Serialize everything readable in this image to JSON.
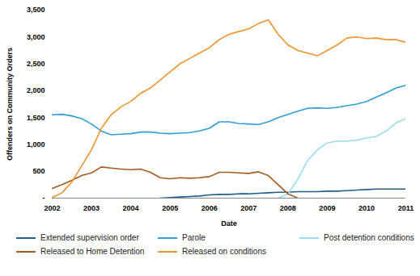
{
  "chart_data": {
    "type": "line",
    "x_label": "Date",
    "y_label": "Offenders on Community Orders",
    "x": [
      2002,
      2002.25,
      2002.5,
      2002.75,
      2003,
      2003.25,
      2003.5,
      2003.75,
      2004,
      2004.25,
      2004.5,
      2004.75,
      2005,
      2005.25,
      2005.5,
      2005.75,
      2006,
      2006.25,
      2006.5,
      2006.75,
      2007,
      2007.25,
      2007.5,
      2007.75,
      2008,
      2008.25,
      2008.5,
      2008.75,
      2009,
      2009.25,
      2009.5,
      2009.75,
      2010,
      2010.25,
      2010.5,
      2010.75,
      2011
    ],
    "xlim": [
      2002,
      2011
    ],
    "xticks": [
      2002,
      2003,
      2004,
      2005,
      2006,
      2007,
      2008,
      2009,
      2010,
      2011
    ],
    "ylim": [
      0,
      3500
    ],
    "yticks": [
      {
        "value": 0,
        "label": "-"
      },
      500,
      {
        "value": 1000,
        "label": "1,000"
      },
      {
        "value": 1500,
        "label": "1,500"
      },
      {
        "value": 2000,
        "label": "2,000"
      },
      {
        "value": 2500,
        "label": "2,500"
      },
      {
        "value": 3000,
        "label": "3,000"
      },
      {
        "value": 3500,
        "label": "3,500"
      }
    ],
    "grid": false,
    "legend": "bottom",
    "series": [
      {
        "name": "Extended supervision order",
        "color": "#1f5f8b",
        "values": [
          null,
          null,
          null,
          null,
          null,
          null,
          null,
          null,
          null,
          null,
          null,
          0,
          10,
          20,
          30,
          40,
          60,
          70,
          70,
          80,
          80,
          90,
          100,
          110,
          110,
          120,
          120,
          120,
          130,
          130,
          140,
          150,
          160,
          170,
          170,
          170,
          170
        ]
      },
      {
        "name": "Parole",
        "color": "#2e9fd8",
        "values": [
          1550,
          1560,
          1530,
          1480,
          1380,
          1250,
          1180,
          1190,
          1200,
          1230,
          1230,
          1210,
          1200,
          1210,
          1220,
          1250,
          1300,
          1420,
          1420,
          1390,
          1380,
          1370,
          1420,
          1500,
          1560,
          1620,
          1670,
          1680,
          1670,
          1690,
          1720,
          1750,
          1800,
          1880,
          1960,
          2050,
          2100
        ]
      },
      {
        "name": "Post detention conditions",
        "color": "#9adcf0",
        "values": [
          null,
          null,
          null,
          null,
          null,
          null,
          null,
          null,
          null,
          null,
          null,
          null,
          null,
          null,
          null,
          null,
          null,
          null,
          null,
          null,
          null,
          null,
          null,
          0,
          80,
          350,
          700,
          900,
          1030,
          1060,
          1060,
          1080,
          1120,
          1150,
          1250,
          1400,
          1480
        ]
      },
      {
        "name": "Released to Home Detention",
        "color": "#a5581f",
        "values": [
          180,
          250,
          330,
          420,
          470,
          580,
          560,
          540,
          530,
          540,
          480,
          380,
          360,
          380,
          370,
          380,
          400,
          480,
          480,
          470,
          460,
          490,
          420,
          250,
          80,
          0,
          null,
          null,
          null,
          null,
          null,
          null,
          null,
          null,
          null,
          null,
          null
        ]
      },
      {
        "name": "Released on conditions",
        "color": "#f0932b",
        "values": [
          10,
          100,
          300,
          600,
          900,
          1300,
          1550,
          1700,
          1800,
          1950,
          2050,
          2200,
          2350,
          2500,
          2600,
          2700,
          2800,
          2950,
          3050,
          3100,
          3150,
          3250,
          3320,
          3050,
          2850,
          2750,
          2700,
          2650,
          2750,
          2850,
          2980,
          3000,
          2970,
          2980,
          2950,
          2950,
          2900
        ]
      }
    ]
  }
}
